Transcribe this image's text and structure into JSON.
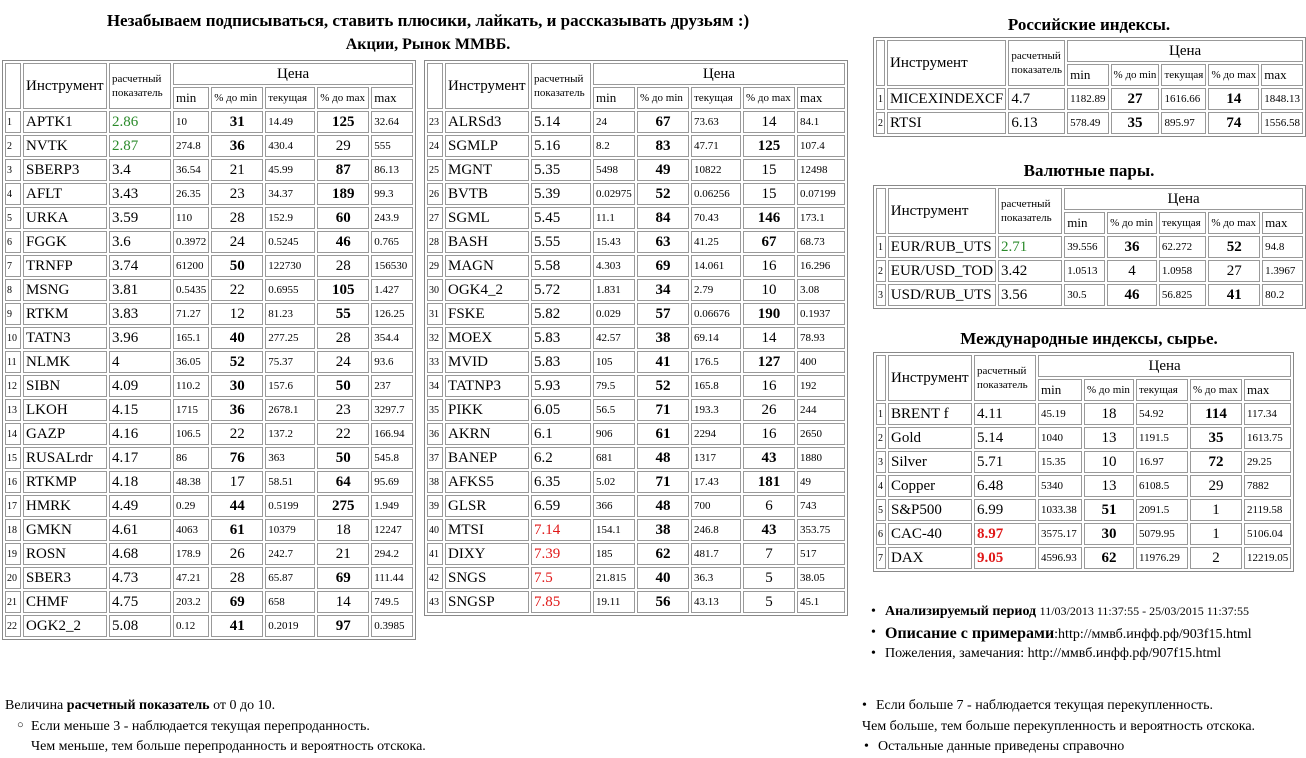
{
  "header": {
    "line1": "Незабываем подписываться, ставить плюсики, лайкать, и рассказывать друзьям :)",
    "line2": "Акции, Рынок ММВБ."
  },
  "columns": {
    "instrument": "Инструмент",
    "score": "расчетный показатель",
    "price": "Цена",
    "min": "min",
    "pct_min": "% до min",
    "current": "текущая",
    "pct_max": "% до max",
    "max": "max"
  },
  "tables": {
    "left": {
      "rows": [
        [
          "1",
          "APTK1",
          {
            "text": "2.86",
            "color": "#2a8a2a"
          },
          "10",
          {
            "text": "31",
            "bold": true
          },
          "14.49",
          {
            "text": "125",
            "bold": true
          },
          "32.64"
        ],
        [
          "2",
          "NVTK",
          {
            "text": "2.87",
            "color": "#2a8a2a"
          },
          "274.8",
          {
            "text": "36",
            "bold": true
          },
          "430.4",
          "29",
          "555"
        ],
        [
          "3",
          "SBERP3",
          "3.4",
          "36.54",
          "21",
          "45.99",
          {
            "text": "87",
            "bold": true
          },
          "86.13"
        ],
        [
          "4",
          "AFLT",
          "3.43",
          "26.35",
          "23",
          "34.37",
          {
            "text": "189",
            "bold": true
          },
          "99.3"
        ],
        [
          "5",
          "URKA",
          "3.59",
          "110",
          "28",
          "152.9",
          {
            "text": "60",
            "bold": true
          },
          "243.9"
        ],
        [
          "6",
          "FGGK",
          "3.6",
          "0.3972",
          "24",
          "0.5245",
          {
            "text": "46",
            "bold": true
          },
          "0.765"
        ],
        [
          "7",
          "TRNFP",
          "3.74",
          "61200",
          {
            "text": "50",
            "bold": true
          },
          "122730",
          "28",
          "156530"
        ],
        [
          "8",
          "MSNG",
          "3.81",
          "0.5435",
          "22",
          "0.6955",
          {
            "text": "105",
            "bold": true
          },
          "1.427"
        ],
        [
          "9",
          "RTKM",
          "3.83",
          "71.27",
          "12",
          "81.23",
          {
            "text": "55",
            "bold": true
          },
          "126.25"
        ],
        [
          "10",
          "TATN3",
          "3.96",
          "165.1",
          {
            "text": "40",
            "bold": true
          },
          "277.25",
          "28",
          "354.4"
        ],
        [
          "11",
          "NLMK",
          "4",
          "36.05",
          {
            "text": "52",
            "bold": true
          },
          "75.37",
          "24",
          "93.6"
        ],
        [
          "12",
          "SIBN",
          "4.09",
          "110.2",
          {
            "text": "30",
            "bold": true
          },
          "157.6",
          {
            "text": "50",
            "bold": true
          },
          "237"
        ],
        [
          "13",
          "LKOH",
          "4.15",
          "1715",
          {
            "text": "36",
            "bold": true
          },
          "2678.1",
          "23",
          "3297.7"
        ],
        [
          "14",
          "GAZP",
          "4.16",
          "106.5",
          "22",
          "137.2",
          "22",
          "166.94"
        ],
        [
          "15",
          "RUSALrdr",
          "4.17",
          "86",
          {
            "text": "76",
            "bold": true
          },
          "363",
          {
            "text": "50",
            "bold": true
          },
          "545.8"
        ],
        [
          "16",
          "RTKMP",
          "4.18",
          "48.38",
          "17",
          "58.51",
          {
            "text": "64",
            "bold": true
          },
          "95.69"
        ],
        [
          "17",
          "HMRK",
          "4.49",
          "0.29",
          {
            "text": "44",
            "bold": true
          },
          "0.5199",
          {
            "text": "275",
            "bold": true
          },
          "1.949"
        ],
        [
          "18",
          "GMKN",
          "4.61",
          "4063",
          {
            "text": "61",
            "bold": true
          },
          "10379",
          "18",
          "12247"
        ],
        [
          "19",
          "ROSN",
          "4.68",
          "178.9",
          "26",
          "242.7",
          "21",
          "294.2"
        ],
        [
          "20",
          "SBER3",
          "4.73",
          "47.21",
          "28",
          "65.87",
          {
            "text": "69",
            "bold": true
          },
          "111.44"
        ],
        [
          "21",
          "CHMF",
          "4.75",
          "203.2",
          {
            "text": "69",
            "bold": true
          },
          "658",
          "14",
          "749.5"
        ],
        [
          "22",
          "OGK2_2",
          "5.08",
          "0.12",
          {
            "text": "41",
            "bold": true
          },
          "0.2019",
          {
            "text": "97",
            "bold": true
          },
          "0.3985"
        ]
      ]
    },
    "middle": {
      "rows": [
        [
          "23",
          "ALRSd3",
          "5.14",
          "24",
          {
            "text": "67",
            "bold": true
          },
          "73.63",
          "14",
          "84.1"
        ],
        [
          "24",
          "SGMLP",
          "5.16",
          "8.2",
          {
            "text": "83",
            "bold": true
          },
          "47.71",
          {
            "text": "125",
            "bold": true
          },
          "107.4"
        ],
        [
          "25",
          "MGNT",
          "5.35",
          "5498",
          {
            "text": "49",
            "bold": true
          },
          "10822",
          "15",
          "12498"
        ],
        [
          "26",
          "BVTB",
          "5.39",
          "0.02975",
          {
            "text": "52",
            "bold": true
          },
          "0.06256",
          "15",
          "0.07199"
        ],
        [
          "27",
          "SGML",
          "5.45",
          "11.1",
          {
            "text": "84",
            "bold": true
          },
          "70.43",
          {
            "text": "146",
            "bold": true
          },
          "173.1"
        ],
        [
          "28",
          "BASH",
          "5.55",
          "15.43",
          {
            "text": "63",
            "bold": true
          },
          "41.25",
          {
            "text": "67",
            "bold": true
          },
          "68.73"
        ],
        [
          "29",
          "MAGN",
          "5.58",
          "4.303",
          {
            "text": "69",
            "bold": true
          },
          "14.061",
          "16",
          "16.296"
        ],
        [
          "30",
          "OGK4_2",
          "5.72",
          "1.831",
          {
            "text": "34",
            "bold": true
          },
          "2.79",
          "10",
          "3.08"
        ],
        [
          "31",
          "FSKE",
          "5.82",
          "0.029",
          {
            "text": "57",
            "bold": true
          },
          "0.06676",
          {
            "text": "190",
            "bold": true
          },
          "0.1937"
        ],
        [
          "32",
          "MOEX",
          "5.83",
          "42.57",
          {
            "text": "38",
            "bold": true
          },
          "69.14",
          "14",
          "78.93"
        ],
        [
          "33",
          "MVID",
          "5.83",
          "105",
          {
            "text": "41",
            "bold": true
          },
          "176.5",
          {
            "text": "127",
            "bold": true
          },
          "400"
        ],
        [
          "34",
          "TATNP3",
          "5.93",
          "79.5",
          {
            "text": "52",
            "bold": true
          },
          "165.8",
          "16",
          "192"
        ],
        [
          "35",
          "PIKK",
          "6.05",
          "56.5",
          {
            "text": "71",
            "bold": true
          },
          "193.3",
          "26",
          "244"
        ],
        [
          "36",
          "AKRN",
          "6.1",
          "906",
          {
            "text": "61",
            "bold": true
          },
          "2294",
          "16",
          "2650"
        ],
        [
          "37",
          "BANEP",
          "6.2",
          "681",
          {
            "text": "48",
            "bold": true
          },
          "1317",
          {
            "text": "43",
            "bold": true
          },
          "1880"
        ],
        [
          "38",
          "AFKS5",
          "6.35",
          "5.02",
          {
            "text": "71",
            "bold": true
          },
          "17.43",
          {
            "text": "181",
            "bold": true
          },
          "49"
        ],
        [
          "39",
          "GLSR",
          "6.59",
          "366",
          {
            "text": "48",
            "bold": true
          },
          "700",
          "6",
          "743"
        ],
        [
          "40",
          "MTSI",
          {
            "text": "7.14",
            "color": "#e01818"
          },
          "154.1",
          {
            "text": "38",
            "bold": true
          },
          "246.8",
          {
            "text": "43",
            "bold": true
          },
          "353.75"
        ],
        [
          "41",
          "DIXY",
          {
            "text": "7.39",
            "color": "#e01818"
          },
          "185",
          {
            "text": "62",
            "bold": true
          },
          "481.7",
          "7",
          "517"
        ],
        [
          "42",
          "SNGS",
          {
            "text": "7.5",
            "color": "#e01818"
          },
          "21.815",
          {
            "text": "40",
            "bold": true
          },
          "36.3",
          "5",
          "38.05"
        ],
        [
          "43",
          "SNGSP",
          {
            "text": "7.85",
            "color": "#e01818"
          },
          "19.11",
          {
            "text": "56",
            "bold": true
          },
          "43.13",
          "5",
          "45.1"
        ]
      ]
    },
    "russian": {
      "title": "Российские индексы.",
      "rows": [
        [
          "1",
          "MICEXINDEXCF",
          "4.7",
          "1182.89",
          {
            "text": "27",
            "bold": true
          },
          "1616.66",
          {
            "text": "14",
            "bold": true
          },
          "1848.13"
        ],
        [
          "2",
          "RTSI",
          "6.13",
          "578.49",
          {
            "text": "35",
            "bold": true
          },
          "895.97",
          {
            "text": "74",
            "bold": true
          },
          "1556.58"
        ]
      ]
    },
    "currency": {
      "title": "Валютные пары.",
      "rows": [
        [
          "1",
          "EUR/RUB_UTS",
          {
            "text": "2.71",
            "color": "#2a8a2a"
          },
          "39.556",
          {
            "text": "36",
            "bold": true
          },
          "62.272",
          {
            "text": "52",
            "bold": true
          },
          "94.8"
        ],
        [
          "2",
          "EUR/USD_TOD",
          "3.42",
          "1.0513",
          "4",
          "1.0958",
          "27",
          "1.3967"
        ],
        [
          "3",
          "USD/RUB_UTS",
          "3.56",
          "30.5",
          {
            "text": "46",
            "bold": true
          },
          "56.825",
          {
            "text": "41",
            "bold": true
          },
          "80.2"
        ]
      ]
    },
    "international": {
      "title": "Международные индексы, сырье.",
      "rows": [
        [
          "1",
          "BRENT f",
          "4.11",
          "45.19",
          "18",
          "54.92",
          {
            "text": "114",
            "bold": true
          },
          "117.34"
        ],
        [
          "2",
          "Gold",
          "5.14",
          "1040",
          "13",
          "1191.5",
          {
            "text": "35",
            "bold": true
          },
          "1613.75"
        ],
        [
          "3",
          "Silver",
          "5.71",
          "15.35",
          "10",
          "16.97",
          {
            "text": "72",
            "bold": true
          },
          "29.25"
        ],
        [
          "4",
          "Copper",
          "6.48",
          "5340",
          "13",
          "6108.5",
          "29",
          "7882"
        ],
        [
          "5",
          "S&P500",
          "6.99",
          "1033.38",
          {
            "text": "51",
            "bold": true
          },
          "2091.5",
          "1",
          "2119.58"
        ],
        [
          "6",
          "CAC-40",
          {
            "text": "8.97",
            "color": "#e01818",
            "bold": true
          },
          "3575.17",
          {
            "text": "30",
            "bold": true
          },
          "5079.95",
          "1",
          "5106.04"
        ],
        [
          "7",
          "DAX",
          {
            "text": "9.05",
            "color": "#e01818",
            "bold": true
          },
          "4596.93",
          {
            "text": "62",
            "bold": true
          },
          "11976.29",
          "2",
          "12219.05"
        ]
      ]
    }
  },
  "info": {
    "period_label": "Анализируемый период",
    "period": "11/03/2013 11:37:55 - 25/03/2015 11:37:55",
    "desc_label": "Описание с примерами",
    "desc": ":http://ммвб.инфф.рф/903f15.html",
    "feedback": "Пожеления, замечания: http://ммвб.инфф.рф/907f15.html"
  },
  "notes_left": {
    "prefix": "Величина",
    "bold": "расчетный показатель",
    "suffix": "от 0 до 10.",
    "low": "Если меньше 3 - наблюдается текущая перепроданность.",
    "low_detail": "Чем меньше, тем больше перепроданность и вероятность отскока."
  },
  "notes_right": {
    "high": "Если больше 7 - наблюдается текущая перекупленность.",
    "high_detail": "Чем больше, тем больше перекупленность и вероятность отскока.",
    "other": "Остальные данные приведены справочно"
  }
}
